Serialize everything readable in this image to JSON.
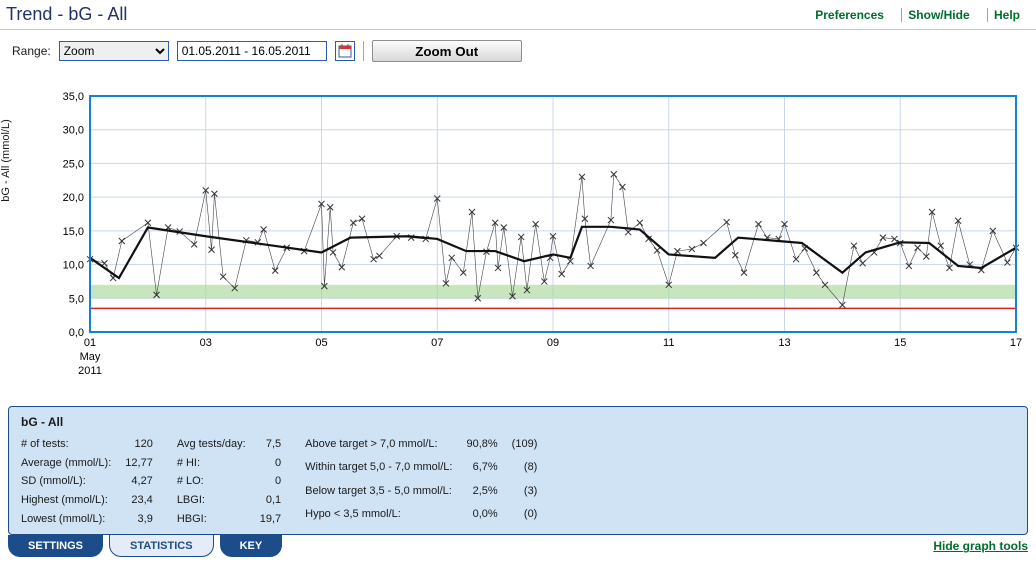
{
  "title": "Trend - bG - All",
  "links": {
    "preferences": "Preferences",
    "showhide": "Show/Hide",
    "help": "Help"
  },
  "toolbar": {
    "rangeLabel": "Range:",
    "rangeSelected": "Zoom",
    "dateRange": "01.05.2011 - 16.05.2011",
    "zoomOut": "Zoom Out"
  },
  "chart": {
    "ylabel": "bG - All (mmol/L)",
    "xlim": [
      1,
      17
    ],
    "ylim": [
      0,
      35
    ],
    "ytick": 5,
    "targetBand": [
      5.0,
      7.0
    ],
    "hypoLine": 3.5,
    "xTicks": [
      1,
      3,
      5,
      7,
      9,
      11,
      13,
      15,
      17
    ],
    "xTickLabels": [
      "01",
      "03",
      "05",
      "07",
      "09",
      "11",
      "13",
      "15",
      "17"
    ],
    "xSubLabels": [
      "May",
      "2011"
    ],
    "plotColor": "#1382d6",
    "gridColor": "#c9d7ea",
    "bandColor": "#a9d99b",
    "hypoColor": "#d62728",
    "points": [
      [
        1.0,
        10.8
      ],
      [
        1.25,
        10.2
      ],
      [
        1.4,
        8.0
      ],
      [
        1.55,
        13.5
      ],
      [
        2.0,
        16.2
      ],
      [
        2.15,
        5.5
      ],
      [
        2.35,
        15.5
      ],
      [
        2.55,
        14.9
      ],
      [
        2.8,
        13.0
      ],
      [
        3.0,
        21.0
      ],
      [
        3.1,
        12.2
      ],
      [
        3.15,
        20.5
      ],
      [
        3.3,
        8.2
      ],
      [
        3.5,
        6.5
      ],
      [
        3.7,
        13.6
      ],
      [
        3.9,
        13.3
      ],
      [
        4.0,
        15.2
      ],
      [
        4.2,
        9.1
      ],
      [
        4.4,
        12.5
      ],
      [
        4.7,
        12.0
      ],
      [
        5.0,
        19.0
      ],
      [
        5.05,
        6.8
      ],
      [
        5.15,
        18.5
      ],
      [
        5.2,
        11.8
      ],
      [
        5.35,
        9.6
      ],
      [
        5.55,
        16.2
      ],
      [
        5.7,
        16.8
      ],
      [
        5.9,
        10.8
      ],
      [
        6.0,
        11.3
      ],
      [
        6.3,
        14.2
      ],
      [
        6.55,
        14.0
      ],
      [
        6.8,
        13.8
      ],
      [
        7.0,
        19.8
      ],
      [
        7.15,
        7.2
      ],
      [
        7.25,
        11.0
      ],
      [
        7.45,
        8.8
      ],
      [
        7.6,
        17.8
      ],
      [
        7.7,
        5.0
      ],
      [
        7.85,
        11.9
      ],
      [
        8.0,
        16.2
      ],
      [
        8.05,
        9.5
      ],
      [
        8.15,
        15.5
      ],
      [
        8.3,
        5.3
      ],
      [
        8.45,
        14.1
      ],
      [
        8.55,
        6.2
      ],
      [
        8.7,
        16.0
      ],
      [
        8.85,
        7.5
      ],
      [
        8.95,
        11.0
      ],
      [
        9.0,
        14.2
      ],
      [
        9.15,
        8.6
      ],
      [
        9.3,
        10.5
      ],
      [
        9.5,
        23.0
      ],
      [
        9.55,
        16.8
      ],
      [
        9.65,
        9.8
      ],
      [
        10.0,
        16.6
      ],
      [
        10.05,
        23.4
      ],
      [
        10.2,
        21.5
      ],
      [
        10.3,
        14.8
      ],
      [
        10.5,
        16.2
      ],
      [
        10.65,
        13.8
      ],
      [
        10.8,
        12.1
      ],
      [
        11.0,
        7.0
      ],
      [
        11.15,
        12.0
      ],
      [
        11.4,
        12.3
      ],
      [
        11.6,
        13.2
      ],
      [
        12.0,
        16.3
      ],
      [
        12.15,
        11.4
      ],
      [
        12.3,
        8.8
      ],
      [
        12.55,
        16.0
      ],
      [
        12.7,
        14.0
      ],
      [
        12.9,
        13.8
      ],
      [
        13.0,
        16.0
      ],
      [
        13.2,
        10.8
      ],
      [
        13.35,
        12.4
      ],
      [
        13.55,
        8.8
      ],
      [
        13.7,
        7.0
      ],
      [
        14.0,
        4.0
      ],
      [
        14.2,
        12.8
      ],
      [
        14.35,
        10.2
      ],
      [
        14.55,
        11.8
      ],
      [
        14.7,
        14.0
      ],
      [
        14.9,
        13.8
      ],
      [
        15.0,
        13.2
      ],
      [
        15.15,
        9.8
      ],
      [
        15.3,
        12.5
      ],
      [
        15.45,
        11.2
      ],
      [
        15.55,
        17.8
      ],
      [
        15.7,
        12.8
      ],
      [
        15.85,
        9.5
      ],
      [
        16.0,
        16.5
      ],
      [
        16.2,
        10.0
      ],
      [
        16.4,
        9.2
      ],
      [
        16.6,
        15.0
      ],
      [
        16.85,
        10.3
      ],
      [
        17.0,
        12.5
      ]
    ],
    "trend": [
      [
        1.0,
        11.0
      ],
      [
        1.5,
        8.0
      ],
      [
        2.0,
        15.5
      ],
      [
        3.0,
        14.2
      ],
      [
        4.0,
        13.0
      ],
      [
        5.0,
        11.8
      ],
      [
        5.5,
        14.0
      ],
      [
        6.5,
        14.2
      ],
      [
        7.0,
        13.8
      ],
      [
        7.5,
        12.0
      ],
      [
        8.0,
        12.0
      ],
      [
        8.5,
        10.5
      ],
      [
        9.0,
        11.5
      ],
      [
        9.3,
        11.0
      ],
      [
        9.5,
        15.6
      ],
      [
        10.0,
        15.6
      ],
      [
        10.5,
        15.2
      ],
      [
        11.0,
        11.5
      ],
      [
        11.8,
        11.0
      ],
      [
        12.2,
        14.0
      ],
      [
        13.3,
        13.2
      ],
      [
        14.0,
        8.8
      ],
      [
        14.4,
        11.8
      ],
      [
        15.0,
        13.3
      ],
      [
        15.5,
        13.2
      ],
      [
        16.0,
        9.8
      ],
      [
        16.4,
        9.5
      ],
      [
        17.0,
        12.5
      ]
    ]
  },
  "stats": {
    "heading": "bG - All",
    "col1": [
      [
        "# of tests:",
        "120"
      ],
      [
        "Average (mmol/L):",
        "12,77"
      ],
      [
        "SD (mmol/L):",
        "4,27"
      ],
      [
        "Highest (mmol/L):",
        "23,4"
      ],
      [
        "Lowest (mmol/L):",
        "3,9"
      ]
    ],
    "col2": [
      [
        "Avg tests/day:",
        "7,5"
      ],
      [
        "# HI:",
        "0"
      ],
      [
        "# LO:",
        "0"
      ],
      [
        "LBGI:",
        "0,1"
      ],
      [
        "HBGI:",
        "19,7"
      ]
    ],
    "col3": [
      [
        "Above target > 7,0 mmol/L:",
        "90,8%",
        "(109)"
      ],
      [
        "Within target 5,0 - 7,0 mmol/L:",
        "6,7%",
        "(8)"
      ],
      [
        "Below target 3,5 - 5,0 mmol/L:",
        "2,5%",
        "(3)"
      ],
      [
        "Hypo < 3,5 mmol/L:",
        "0,0%",
        "(0)"
      ]
    ]
  },
  "tabs": {
    "settings": "SETTINGS",
    "statistics": "STATISTICS",
    "key": "KEY"
  },
  "hideTools": "Hide graph tools"
}
